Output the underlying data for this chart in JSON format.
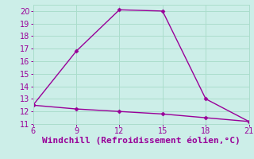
{
  "x": [
    6,
    9,
    12,
    15,
    18,
    21
  ],
  "y_main": [
    12.5,
    16.8,
    20.1,
    20.0,
    13.0,
    11.2
  ],
  "y_flat": [
    12.5,
    12.2,
    12.0,
    11.8,
    11.5,
    11.2
  ],
  "line_color": "#990099",
  "bg_color": "#cceee8",
  "grid_color": "#aaddcc",
  "xlabel": "Windchill (Refroidissement éolien,°C)",
  "xlabel_color": "#990099",
  "tick_color": "#990099",
  "xlim": [
    6,
    21
  ],
  "ylim": [
    11,
    20.5
  ],
  "xticks": [
    6,
    9,
    12,
    15,
    18,
    21
  ],
  "yticks": [
    11,
    12,
    13,
    14,
    15,
    16,
    17,
    18,
    19,
    20
  ],
  "markersize": 2.5,
  "linewidth": 1.0,
  "xlabel_fontsize": 8,
  "tick_fontsize": 7
}
